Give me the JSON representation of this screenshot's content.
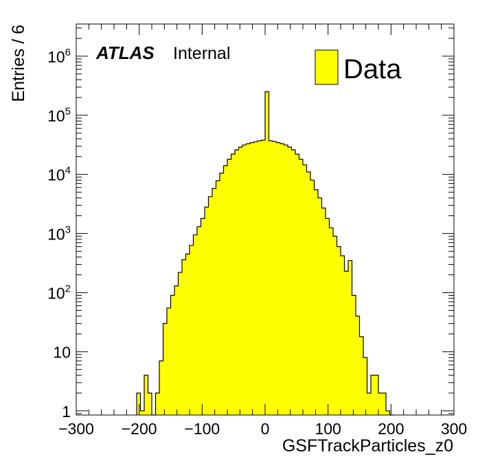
{
  "chart_data": {
    "type": "bar",
    "title": "",
    "xlabel": "GSFTrackParticles_z0",
    "ylabel": "Entries / 6",
    "xlim": [
      -300,
      300
    ],
    "ylim": [
      0.85,
      3500000
    ],
    "log_y": true,
    "bin_width": 6,
    "grid": false,
    "legend_position": "top-right",
    "x_ticks": [
      {
        "v": -300,
        "label": "−300"
      },
      {
        "v": -200,
        "label": "−200"
      },
      {
        "v": -100,
        "label": "−100"
      },
      {
        "v": 0,
        "label": "0"
      },
      {
        "v": 100,
        "label": "100"
      },
      {
        "v": 200,
        "label": "200"
      },
      {
        "v": 300,
        "label": "300"
      }
    ],
    "y_ticks": [
      {
        "v": 1,
        "base": "1",
        "exp": ""
      },
      {
        "v": 10,
        "base": "10",
        "exp": ""
      },
      {
        "v": 100,
        "base": "10",
        "exp": "2"
      },
      {
        "v": 1000,
        "base": "10",
        "exp": "3"
      },
      {
        "v": 10000,
        "base": "10",
        "exp": "4"
      },
      {
        "v": 100000,
        "base": "10",
        "exp": "5"
      },
      {
        "v": 1000000,
        "base": "10",
        "exp": "6"
      }
    ],
    "fill_color": "#ffff00",
    "line_color": "#000000",
    "series": [
      {
        "name": "Data",
        "x": [
          -204,
          -198,
          -192,
          -186,
          -180,
          -174,
          -168,
          -162,
          -156,
          -150,
          -144,
          -138,
          -132,
          -126,
          -120,
          -114,
          -108,
          -102,
          -96,
          -90,
          -84,
          -78,
          -72,
          -66,
          -60,
          -54,
          -48,
          -42,
          -36,
          -30,
          -24,
          -18,
          -12,
          -6,
          0,
          6,
          12,
          18,
          24,
          30,
          36,
          42,
          48,
          54,
          60,
          66,
          72,
          78,
          84,
          90,
          96,
          102,
          108,
          114,
          120,
          126,
          132,
          138,
          144,
          150,
          156,
          162,
          168,
          174,
          180,
          186,
          192,
          198
        ],
        "values": [
          2,
          1,
          4,
          2,
          0,
          2,
          7,
          30,
          55,
          90,
          130,
          220,
          360,
          450,
          630,
          950,
          1300,
          1800,
          2800,
          4200,
          5800,
          7800,
          10500,
          14000,
          18000,
          22000,
          26000,
          29000,
          31500,
          33000,
          34500,
          35500,
          37000,
          38000,
          250000,
          37000,
          36000,
          34500,
          33000,
          31500,
          29000,
          26000,
          22000,
          18000,
          14500,
          11000,
          8000,
          5500,
          4000,
          2700,
          1800,
          1250,
          900,
          600,
          420,
          230,
          350,
          90,
          40,
          18,
          8,
          2,
          4,
          4,
          2,
          2,
          1,
          0
        ]
      }
    ],
    "annotations": {
      "experiment": "ATLAS",
      "status": "Internal"
    }
  }
}
